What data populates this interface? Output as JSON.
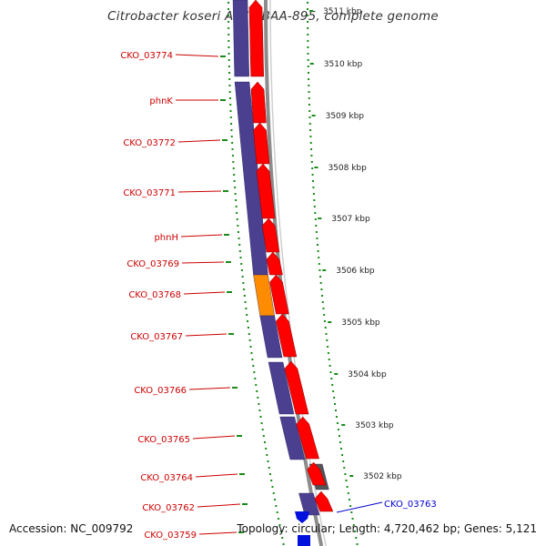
{
  "title": "Citrobacter koseri ATCC BAA-895, complete genome",
  "accession": "Accession: NC_009792",
  "summary": "Topology: circular; Length: 4,720,462 bp; Genes: 5,121",
  "colors": {
    "cds_fwd": "#ff0000",
    "cds_rev": "#4b3f8f",
    "highlight": "#ff8c00",
    "other": "#555555",
    "label_left": "#cc0000",
    "label_right": "#0000cc",
    "ruler": "#1a8a1a",
    "backbone": "#8c8c8c"
  },
  "genes_left": [
    {
      "name": "CKO_03774"
    },
    {
      "name": "phnK"
    },
    {
      "name": "CKO_03772"
    },
    {
      "name": "CKO_03771"
    },
    {
      "name": "phnH"
    },
    {
      "name": "CKO_03769"
    },
    {
      "name": "CKO_03768"
    },
    {
      "name": "CKO_03767"
    },
    {
      "name": "CKO_03766"
    },
    {
      "name": "CKO_03765"
    },
    {
      "name": "CKO_03764"
    },
    {
      "name": "CKO_03762"
    },
    {
      "name": "CKO_03759"
    }
  ],
  "genes_right": [
    {
      "name": "CKO_03763"
    }
  ],
  "kbp_ticks": [
    "3511 kbp",
    "3510 kbp",
    "3509 kbp",
    "3508 kbp",
    "3507 kbp",
    "3506 kbp",
    "3505 kbp",
    "3504 kbp",
    "3503 kbp",
    "3502 kbp"
  ]
}
